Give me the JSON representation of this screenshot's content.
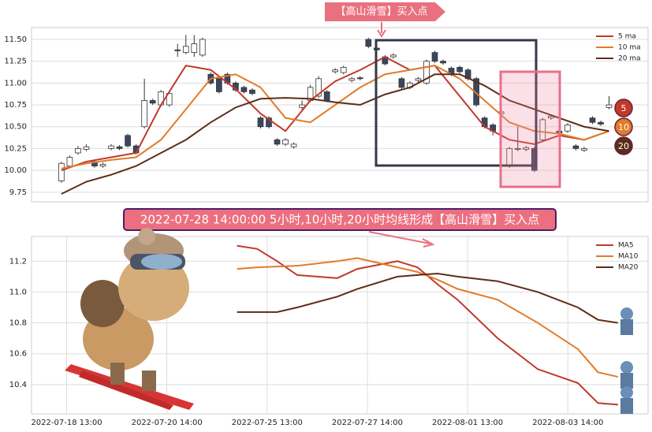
{
  "chart_data": [
    {
      "type": "candlestick",
      "label": "【高山滑雪】买入点",
      "open": [
        9.88,
        10.05,
        10.2,
        10.24,
        10.1,
        10.05,
        10.25,
        10.27,
        10.4,
        10.28,
        10.5,
        10.8,
        10.75,
        10.75,
        11.38,
        11.35,
        11.35,
        11.32,
        11.1,
        11.05,
        11.1,
        11.0,
        10.95,
        10.92,
        10.6,
        10.6,
        10.35,
        10.3,
        10.27,
        10.72,
        10.8,
        10.85,
        10.9,
        11.13,
        11.12,
        11.03,
        11.06,
        11.5,
        11.4,
        11.3,
        11.3,
        11.05,
        10.95,
        11.03,
        11.0,
        11.35,
        11.25,
        11.17,
        11.18,
        11.15,
        11.05,
        10.6,
        10.52,
        10.65,
        10.05,
        10.24,
        10.24,
        10.25,
        10.35,
        10.6,
        10.45,
        10.45,
        10.28,
        10.23,
        10.6,
        10.55,
        10.72
      ],
      "high": [
        10.1,
        10.17,
        10.28,
        10.3,
        10.12,
        10.09,
        10.3,
        10.29,
        10.42,
        10.3,
        11.05,
        10.82,
        10.92,
        10.9,
        11.45,
        11.55,
        11.55,
        11.52,
        11.12,
        11.07,
        11.12,
        11.02,
        10.97,
        10.94,
        10.62,
        10.62,
        10.37,
        10.37,
        10.32,
        10.8,
        10.98,
        11.08,
        10.92,
        11.17,
        11.2,
        11.07,
        11.08,
        11.52,
        11.42,
        11.32,
        11.34,
        11.07,
        11.02,
        11.07,
        11.27,
        11.37,
        11.27,
        11.19,
        11.2,
        11.17,
        11.07,
        10.62,
        10.54,
        10.69,
        10.27,
        10.5,
        10.28,
        10.27,
        10.6,
        10.64,
        10.47,
        10.54,
        10.3,
        10.27,
        10.62,
        10.57,
        10.85
      ],
      "low": [
        9.86,
        10.03,
        10.18,
        10.22,
        10.03,
        10.03,
        10.23,
        10.23,
        10.26,
        10.18,
        10.48,
        10.75,
        10.73,
        10.73,
        11.3,
        11.33,
        11.3,
        11.3,
        10.98,
        10.88,
        10.98,
        10.9,
        10.88,
        10.86,
        10.48,
        10.48,
        10.28,
        10.28,
        10.25,
        10.7,
        10.78,
        10.83,
        10.78,
        11.11,
        11.1,
        11.01,
        11.03,
        11.4,
        11.36,
        11.2,
        11.28,
        10.93,
        10.93,
        11.01,
        10.98,
        11.23,
        11.21,
        11.08,
        11.11,
        11.03,
        10.73,
        10.48,
        10.4,
        10.63,
        10.03,
        10.22,
        10.22,
        9.98,
        10.33,
        10.58,
        10.41,
        10.43,
        10.23,
        10.21,
        10.53,
        10.51,
        10.7
      ],
      "close": [
        10.08,
        10.15,
        10.25,
        10.27,
        10.05,
        10.07,
        10.28,
        10.25,
        10.28,
        10.2,
        10.8,
        10.77,
        10.9,
        10.88,
        11.37,
        11.42,
        11.45,
        11.5,
        11.0,
        10.9,
        11.0,
        10.92,
        10.9,
        10.88,
        10.5,
        10.5,
        10.3,
        10.35,
        10.3,
        10.75,
        10.95,
        11.05,
        10.8,
        11.15,
        11.18,
        11.05,
        11.05,
        11.42,
        11.38,
        11.22,
        11.32,
        10.95,
        11.0,
        11.05,
        11.25,
        11.25,
        11.23,
        11.1,
        11.13,
        11.05,
        10.75,
        10.5,
        10.45,
        10.67,
        10.25,
        10.25,
        10.26,
        10.0,
        10.58,
        10.62,
        10.43,
        10.52,
        10.25,
        10.25,
        10.55,
        10.53,
        10.75
      ],
      "up_color": "#ffffff",
      "down_color": "#3a4760",
      "xlim": [
        -3.6,
        70.7
      ],
      "ylim": [
        9.64,
        11.635
      ],
      "yticks": [
        9.75,
        {
          "value": 10,
          "label": "10.00"
        },
        10.25,
        {
          "value": 10.5,
          "label": "10.50"
        },
        10.75,
        {
          "value": 11,
          "label": "11.00"
        },
        11.25,
        {
          "value": 11.5,
          "label": "11.50"
        }
      ],
      "grid": true,
      "legend": "upper right",
      "series": [
        {
          "name": "5 ma",
          "color": "#c0392b",
          "x": [
            0,
            3,
            6,
            9,
            12,
            15,
            18,
            21,
            24,
            27,
            30,
            33,
            36,
            39,
            42,
            45,
            48,
            51,
            54,
            57,
            60,
            63,
            66
          ],
          "values": [
            10.0,
            10.1,
            10.15,
            10.2,
            10.75,
            11.2,
            11.15,
            10.93,
            10.65,
            10.45,
            10.8,
            11.02,
            11.15,
            11.3,
            11.15,
            11.2,
            10.85,
            10.5,
            10.35,
            10.3,
            10.4,
            10.35,
            10.45
          ]
        },
        {
          "name": "10 ma",
          "color": "#e07b2a",
          "x": [
            0,
            3,
            6,
            9,
            12,
            15,
            18,
            21,
            24,
            27,
            30,
            33,
            36,
            39,
            42,
            45,
            48,
            51,
            54,
            57,
            60,
            63,
            66
          ],
          "values": [
            10.02,
            10.08,
            10.12,
            10.15,
            10.35,
            10.7,
            11.05,
            11.1,
            10.95,
            10.6,
            10.55,
            10.75,
            10.95,
            11.1,
            11.15,
            11.2,
            11.05,
            10.8,
            10.55,
            10.45,
            10.42,
            10.35,
            10.45
          ]
        },
        {
          "name": "20 ma",
          "color": "#5c2e17",
          "x": [
            0,
            3,
            6,
            9,
            12,
            15,
            18,
            21,
            24,
            27,
            30,
            33,
            36,
            39,
            42,
            45,
            48,
            51,
            54,
            57,
            60,
            63,
            66
          ],
          "values": [
            9.73,
            9.87,
            9.95,
            10.05,
            10.2,
            10.35,
            10.55,
            10.72,
            10.82,
            10.83,
            10.82,
            10.78,
            10.75,
            10.87,
            10.95,
            11.1,
            11.1,
            10.97,
            10.8,
            10.7,
            10.6,
            10.5,
            10.45
          ]
        }
      ],
      "markers": [
        "5",
        "10",
        "20"
      ]
    },
    {
      "type": "line",
      "annotation": "2022-07-28 14:00:00 5小时,10小时,20小时均线形成【高山滑雪】买入点",
      "xlim": [
        -3.5,
        58
      ],
      "ylim": [
        10.21,
        11.36
      ],
      "xticks": [
        {
          "value": 0,
          "label": "2022-07-18 13:00"
        },
        {
          "value": 10,
          "label": "2022-07-20 14:00"
        },
        {
          "value": 20,
          "label": "2022-07-25 13:00"
        },
        {
          "value": 30,
          "label": "2022-07-27 14:00"
        },
        {
          "value": 40,
          "label": "2022-08-01 13:00"
        },
        {
          "value": 50,
          "label": "2022-08-03 14:00"
        }
      ],
      "yticks": [
        10.4,
        10.6,
        10.8,
        {
          "value": 11,
          "label": "11.0"
        },
        11.2
      ],
      "grid": true,
      "legend": "upper right",
      "x": [
        17,
        19,
        21,
        23,
        27,
        29,
        33,
        35,
        37,
        39,
        43,
        47,
        51,
        53,
        55
      ],
      "series": [
        {
          "name": "MA5",
          "color": "#c0392b",
          "values": [
            11.3,
            11.28,
            11.2,
            11.11,
            11.09,
            11.15,
            11.2,
            11.16,
            11.05,
            10.95,
            10.7,
            10.5,
            10.41,
            10.28,
            10.27
          ]
        },
        {
          "name": "MA10",
          "color": "#e07b2a",
          "values": [
            11.15,
            11.16,
            11.165,
            11.17,
            11.2,
            11.22,
            11.16,
            11.13,
            11.08,
            11.02,
            10.95,
            10.8,
            10.63,
            10.48,
            10.45
          ]
        },
        {
          "name": "MA20",
          "color": "#5c2e17",
          "values": [
            10.87,
            10.87,
            10.87,
            10.9,
            10.97,
            11.02,
            11.1,
            11.11,
            11.12,
            11.1,
            11.07,
            11.0,
            10.9,
            10.82,
            10.8
          ]
        }
      ]
    }
  ]
}
